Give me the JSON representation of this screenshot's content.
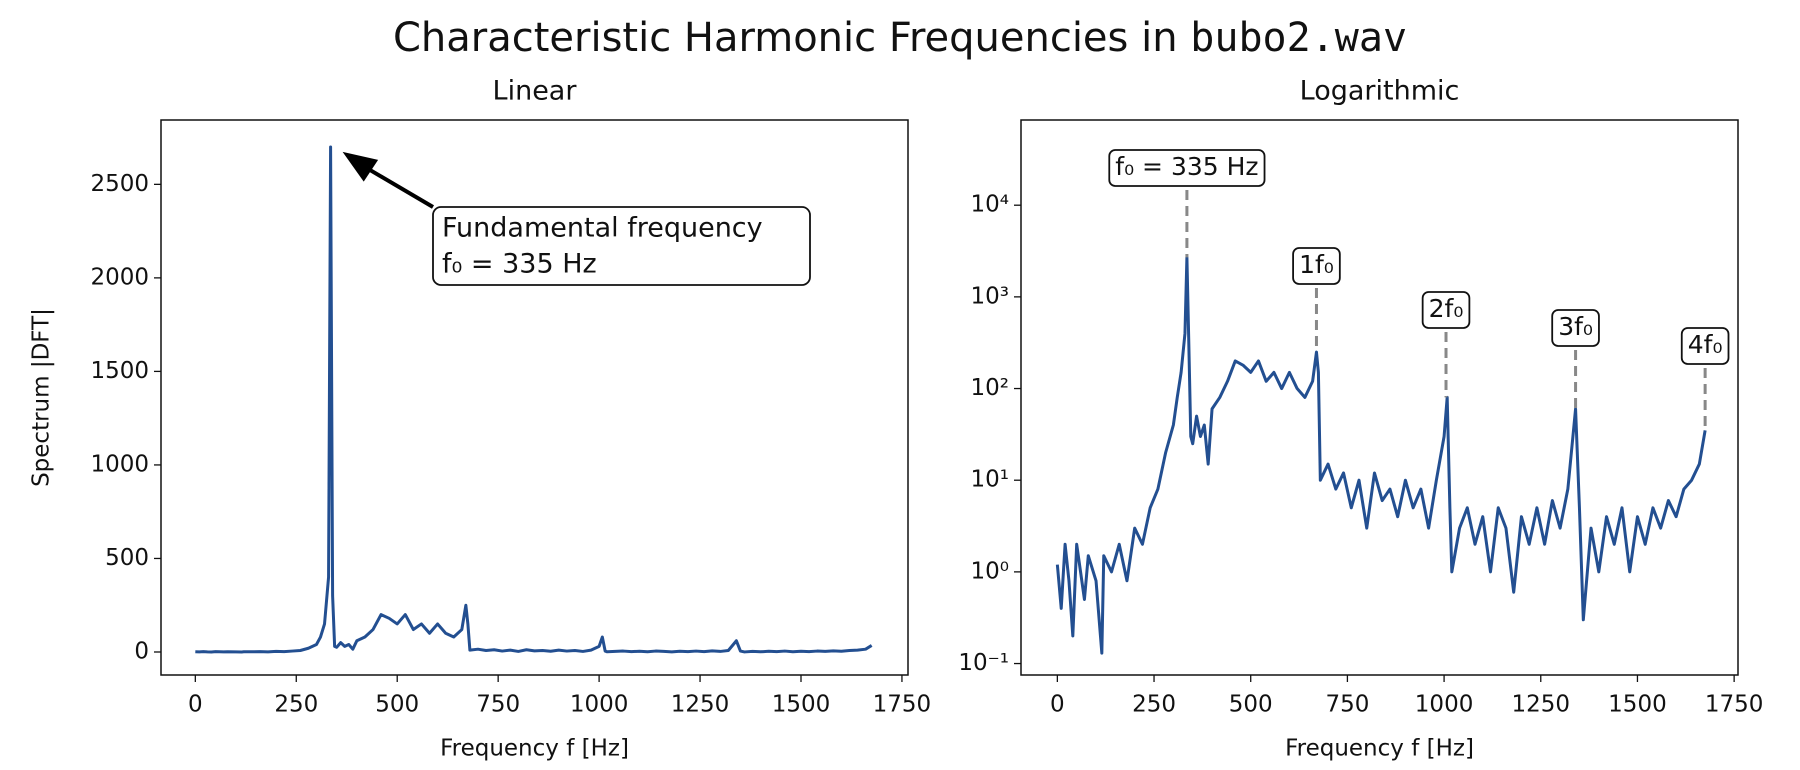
{
  "title": "Characteristic Harmonic Frequencies in",
  "title_code": "bubo2.wav",
  "chart_data": [
    {
      "type": "line",
      "title": "Linear",
      "xlabel": "Frequency f [Hz]",
      "ylabel": "Spectrum |DFT|",
      "log_y": false,
      "x": [
        0,
        10,
        20,
        30,
        40,
        50,
        60,
        70,
        80,
        100,
        115,
        120,
        140,
        160,
        180,
        200,
        220,
        240,
        260,
        280,
        300,
        310,
        320,
        330,
        335,
        340,
        345,
        350,
        360,
        370,
        380,
        390,
        400,
        420,
        440,
        460,
        480,
        500,
        520,
        540,
        560,
        580,
        600,
        620,
        640,
        660,
        670,
        675,
        680,
        700,
        720,
        740,
        760,
        780,
        800,
        820,
        840,
        860,
        880,
        900,
        920,
        940,
        960,
        980,
        1000,
        1008,
        1015,
        1020,
        1040,
        1060,
        1080,
        1100,
        1120,
        1140,
        1160,
        1180,
        1200,
        1220,
        1240,
        1260,
        1280,
        1300,
        1320,
        1340,
        1350,
        1360,
        1380,
        1400,
        1420,
        1440,
        1460,
        1480,
        1500,
        1520,
        1540,
        1560,
        1580,
        1600,
        1620,
        1640,
        1660,
        1675
      ],
      "series": [
        {
          "name": "spectrum",
          "color": "#234f91",
          "values": [
            1.2,
            0.4,
            2,
            0.8,
            0.2,
            2,
            1,
            0.5,
            1.5,
            0.8,
            0.13,
            1.5,
            1,
            2,
            0.8,
            3,
            2,
            5,
            8,
            20,
            40,
            80,
            150,
            400,
            2700,
            300,
            30,
            25,
            50,
            30,
            40,
            15,
            60,
            80,
            120,
            200,
            180,
            150,
            200,
            120,
            150,
            100,
            150,
            100,
            80,
            120,
            250,
            150,
            10,
            15,
            8,
            12,
            5,
            10,
            3,
            12,
            6,
            8,
            4,
            10,
            5,
            8,
            3,
            10,
            30,
            80,
            5,
            1,
            3,
            5,
            2,
            4,
            1,
            5,
            3,
            0.6,
            4,
            2,
            5,
            2,
            6,
            3,
            8,
            60,
            5,
            0.3,
            3,
            1,
            4,
            2,
            5,
            1,
            4,
            2,
            5,
            3,
            6,
            4,
            8,
            10,
            15,
            35
          ]
        }
      ],
      "xlim": [
        -85,
        1765
      ],
      "xticks": [
        0,
        250,
        500,
        750,
        1000,
        1250,
        1500,
        1750
      ],
      "ylim": [
        -123,
        2844
      ],
      "yticks": [
        0,
        500,
        1000,
        1500,
        2000,
        2500
      ],
      "annotations": [
        {
          "text": [
            "Fundamental frequency",
            "f₀ = 335 Hz"
          ],
          "x": 335,
          "y": 2700
        }
      ]
    },
    {
      "type": "line",
      "title": "Logarithmic",
      "xlabel": "Frequency f [Hz]",
      "log_y": true,
      "x": [
        0,
        10,
        20,
        30,
        40,
        50,
        60,
        70,
        80,
        100,
        115,
        120,
        140,
        160,
        180,
        200,
        220,
        240,
        260,
        280,
        300,
        310,
        320,
        330,
        335,
        340,
        345,
        350,
        360,
        370,
        380,
        390,
        400,
        420,
        440,
        460,
        480,
        500,
        520,
        540,
        560,
        580,
        600,
        620,
        640,
        660,
        670,
        675,
        680,
        700,
        720,
        740,
        760,
        780,
        800,
        820,
        840,
        860,
        880,
        900,
        920,
        940,
        960,
        980,
        1000,
        1008,
        1015,
        1020,
        1040,
        1060,
        1080,
        1100,
        1120,
        1140,
        1160,
        1180,
        1200,
        1220,
        1240,
        1260,
        1280,
        1300,
        1320,
        1340,
        1350,
        1360,
        1380,
        1400,
        1420,
        1440,
        1460,
        1480,
        1500,
        1520,
        1540,
        1560,
        1580,
        1600,
        1620,
        1640,
        1660,
        1675
      ],
      "series": [
        {
          "name": "spectrum",
          "color": "#234f91",
          "values": [
            1.2,
            0.4,
            2,
            0.8,
            0.2,
            2,
            1,
            0.5,
            1.5,
            0.8,
            0.13,
            1.5,
            1,
            2,
            0.8,
            3,
            2,
            5,
            8,
            20,
            40,
            80,
            150,
            400,
            2700,
            300,
            30,
            25,
            50,
            30,
            40,
            15,
            60,
            80,
            120,
            200,
            180,
            150,
            200,
            120,
            150,
            100,
            150,
            100,
            80,
            120,
            250,
            150,
            10,
            15,
            8,
            12,
            5,
            10,
            3,
            12,
            6,
            8,
            4,
            10,
            5,
            8,
            3,
            10,
            30,
            80,
            5,
            1,
            3,
            5,
            2,
            4,
            1,
            5,
            3,
            0.6,
            4,
            2,
            5,
            2,
            6,
            3,
            8,
            60,
            5,
            0.3,
            3,
            1,
            4,
            2,
            5,
            1,
            4,
            2,
            5,
            3,
            6,
            4,
            8,
            10,
            15,
            35
          ]
        }
      ],
      "xlim": [
        -94,
        1760
      ],
      "xticks": [
        0,
        250,
        500,
        750,
        1000,
        1250,
        1500,
        1750
      ],
      "ylim": [
        0.075,
        85000
      ],
      "yticks": [
        {
          "value": 0.1,
          "label": "10⁻¹"
        },
        {
          "value": 1,
          "label": "10⁰"
        },
        {
          "value": 10,
          "label": "10¹"
        },
        {
          "value": 100,
          "label": "10²"
        },
        {
          "value": 1000,
          "label": "10³"
        },
        {
          "value": 10000,
          "label": "10⁴"
        }
      ],
      "annotations": [
        {
          "text": [
            "f₀ = 335 Hz"
          ],
          "x": 335,
          "y": 2700
        },
        {
          "text": [
            "1f₀"
          ],
          "x": 670,
          "y": 250
        },
        {
          "text": [
            "2f₀"
          ],
          "x": 1005,
          "y": 80
        },
        {
          "text": [
            "3f₀"
          ],
          "x": 1340,
          "y": 60
        },
        {
          "text": [
            "4f₀"
          ],
          "x": 1675,
          "y": 35
        }
      ]
    }
  ]
}
